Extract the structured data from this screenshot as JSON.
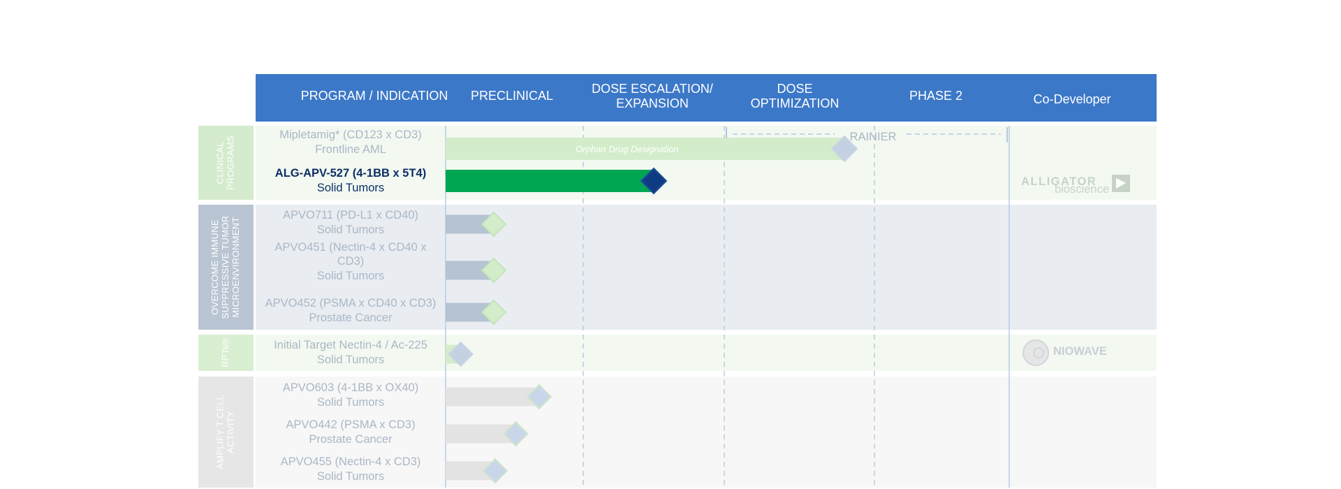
{
  "chart_data": {
    "type": "table",
    "columns": [
      "PROGRAM / INDICATION",
      "PRECLINICAL",
      "DOSE ESCALATION/ EXPANSION",
      "DOSE OPTIMIZATION",
      "PHASE 2",
      "Co-Developer"
    ],
    "stages": [
      "PRECLINICAL",
      "DOSE ESCALATION/ EXPANSION",
      "DOSE OPTIMIZATION",
      "PHASE 2"
    ],
    "stage_axis": [
      0,
      4
    ],
    "groups": [
      {
        "label": "CLINICAL PROGRAMS",
        "color": "#d4ebcd",
        "row_bg": "#f3f9f1",
        "codeveloper": "ALLIGATOR bioscience",
        "programs": [
          {
            "name": "Mipletamig* (CD123 x CD3)",
            "indication": "Frontline AML",
            "progress": 2.8,
            "highlight": false,
            "bar_color": "#d3ecc9",
            "marker_color": "#c3d1e2",
            "annotation": "Orphan Drug Designation"
          },
          {
            "name": "ALG-APV-527 (4-1BB x 5T4)",
            "indication": "Solid Tumors",
            "progress": 1.5,
            "highlight": true,
            "bar_color": "#00a651",
            "marker_color": "#0f3b82"
          }
        ]
      },
      {
        "label": "OVERCOME IMMUNE SUPPRESSIVE TUMOR MICROENVIRONMENT",
        "color": "#b9c5d3",
        "row_bg": "#e9edf2",
        "codeveloper": "",
        "programs": [
          {
            "name": "APVO711 (PD-L1 x CD40)",
            "indication": "Solid Tumors",
            "progress": 0.35,
            "highlight": false,
            "bar_color": "#b5c3d3",
            "marker_color": "#d3ecc9"
          },
          {
            "name": "APVO451 (Nectin-4 x CD40 x CD3)",
            "name_lines": [
              "APVO451 (Nectin-4 x CD40 x",
              "CD3)"
            ],
            "indication": "Solid Tumors",
            "progress": 0.35,
            "highlight": false,
            "bar_color": "#b5c3d3",
            "marker_color": "#d3ecc9"
          },
          {
            "name": "APVO452 (PSMA x CD40 x CD3)",
            "indication": "Prostate Cancer",
            "progress": 0.35,
            "highlight": false,
            "bar_color": "#b5c3d3",
            "marker_color": "#d3ecc9"
          }
        ]
      },
      {
        "label": "RPTs®",
        "color": "#d9efd2",
        "row_bg": "#f3f9f1",
        "codeveloper": "NIOWAVE",
        "programs": [
          {
            "name": "Initial Target Nectin-4 / Ac-225",
            "indication": "Solid Tumors",
            "progress": 0.11,
            "highlight": false,
            "bar_color": "#d3ecc9",
            "marker_color": "#c3d1e2"
          }
        ]
      },
      {
        "label": "AMPLIFY T CELL ACTIVITY",
        "color": "#e6e6e6",
        "row_bg": "#f7f7f7",
        "codeveloper": "",
        "programs": [
          {
            "name": "APVO603 (4-1BB x OX40)",
            "indication": "Solid Tumors",
            "progress": 0.68,
            "highlight": false,
            "bar_color": "#e3e3e3",
            "marker_color": "#c9d6ea"
          },
          {
            "name": "APVO442 (PSMA x CD3)",
            "indication": "Prostate Cancer",
            "progress": 0.51,
            "highlight": false,
            "bar_color": "#e3e3e3",
            "marker_color": "#c9d6ea"
          },
          {
            "name": "APVO455 (Nectin-4 x CD3)",
            "indication": "Solid Tumors",
            "progress": 0.36,
            "highlight": false,
            "bar_color": "#e3e3e3",
            "marker_color": "#c9d6ea"
          }
        ]
      }
    ],
    "trial_label": "RAINIER"
  },
  "colors": {
    "header_bg": "#3c78c8",
    "text_highlight": "#0d2f66",
    "text_muted": "#aab7c5",
    "dash": "#b8cbe3"
  }
}
